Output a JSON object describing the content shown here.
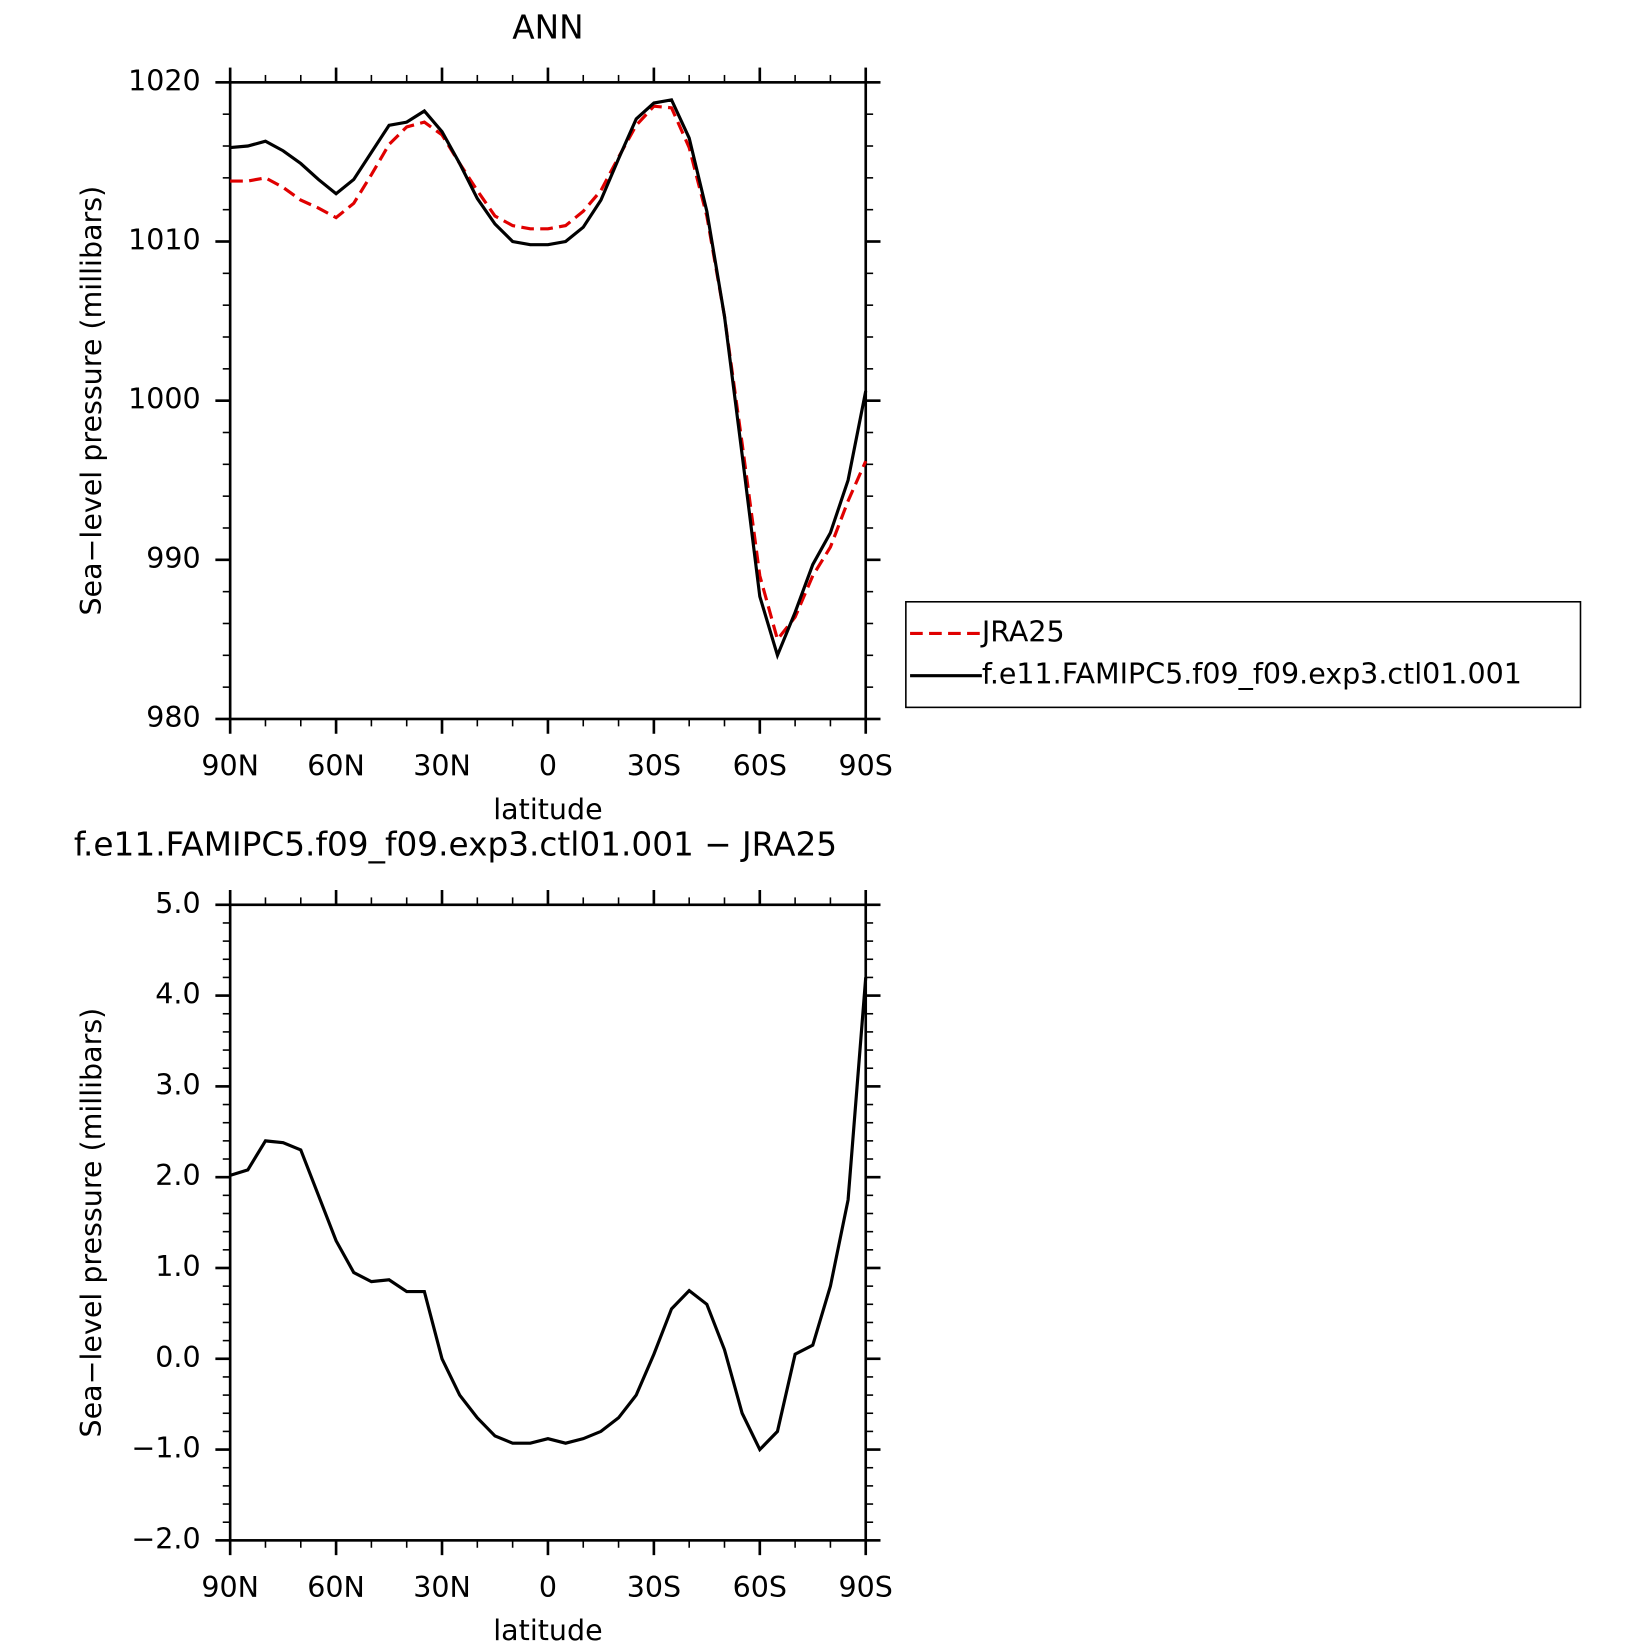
{
  "chart_data": [
    {
      "type": "line",
      "title": "ANN",
      "x_label": "latitude",
      "y_label": "Sea−level pressure (millibars)",
      "x": [
        90,
        85,
        80,
        75,
        70,
        65,
        60,
        55,
        50,
        45,
        40,
        35,
        30,
        25,
        20,
        15,
        10,
        5,
        0,
        -5,
        -10,
        -15,
        -20,
        -25,
        -30,
        -35,
        -40,
        -45,
        -50,
        -55,
        -60,
        -65,
        -70,
        -75,
        -80,
        -85,
        -90
      ],
      "series": [
        {
          "name": "JRA25",
          "color": "#e00000",
          "style": "dashed",
          "values": [
            1013.8,
            1013.8,
            1014.0,
            1013.4,
            1012.6,
            1012.1,
            1011.5,
            1012.4,
            1014.2,
            1016.1,
            1017.2,
            1017.5,
            1016.7,
            1014.9,
            1013.2,
            1011.6,
            1011.0,
            1010.8,
            1010.8,
            1011.0,
            1011.9,
            1013.2,
            1015.3,
            1017.3,
            1018.5,
            1018.4,
            1015.9,
            1011.6,
            1005.3,
            997.3,
            989.0,
            985.0,
            986.4,
            989.0,
            990.8,
            993.7,
            996.2
          ]
        },
        {
          "name": "f.e11.FAMIPC5.f09_f09.exp3.ctl01.001",
          "color": "#000000",
          "style": "solid",
          "values": [
            1015.9,
            1016.0,
            1016.3,
            1015.7,
            1014.9,
            1013.9,
            1013.0,
            1013.9,
            1015.6,
            1017.3,
            1017.5,
            1018.2,
            1016.9,
            1014.9,
            1012.7,
            1011.1,
            1010.0,
            1009.8,
            1009.8,
            1010.0,
            1010.9,
            1012.6,
            1015.2,
            1017.7,
            1018.7,
            1018.9,
            1016.5,
            1011.9,
            1005.3,
            996.6,
            987.7,
            984.0,
            986.7,
            989.7,
            991.7,
            995.0,
            1000.6
          ]
        }
      ],
      "xlim": [
        90,
        -90
      ],
      "ylim": [
        980,
        1020
      ],
      "xticks": [
        {
          "value": 90,
          "label": "90N"
        },
        {
          "value": 60,
          "label": "60N"
        },
        {
          "value": 30,
          "label": "30N"
        },
        0,
        {
          "value": -30,
          "label": "30S"
        },
        {
          "value": -60,
          "label": "60S"
        },
        {
          "value": -90,
          "label": "90S"
        }
      ],
      "yticks": [
        980,
        990,
        1000,
        1010,
        1020
      ],
      "minor_xticks": [
        80,
        70,
        50,
        40,
        20,
        10,
        -10,
        -20,
        -40,
        -50,
        -70,
        -80
      ],
      "minor_yticks": [
        982,
        984,
        986,
        988,
        992,
        994,
        996,
        998,
        1002,
        1004,
        1006,
        1008,
        1012,
        1014,
        1016,
        1018
      ],
      "legend": "right"
    },
    {
      "type": "line",
      "title": "f.e11.FAMIPC5.f09_f09.exp3.ctl01.001 − JRA25",
      "x_label": "latitude",
      "y_label": "Sea−level pressure (millibars)",
      "x": [
        90,
        85,
        80,
        75,
        70,
        65,
        60,
        55,
        50,
        45,
        40,
        35,
        30,
        25,
        20,
        15,
        10,
        5,
        0,
        -5,
        -10,
        -15,
        -20,
        -25,
        -30,
        -35,
        -40,
        -45,
        -50,
        -55,
        -60,
        -65,
        -70,
        -75,
        -80,
        -85,
        -90
      ],
      "values": [
        2.02,
        2.08,
        2.4,
        2.38,
        2.3,
        1.8,
        1.3,
        0.95,
        0.85,
        0.87,
        0.74,
        0.74,
        0.0,
        -0.4,
        -0.65,
        -0.85,
        -0.93,
        -0.93,
        -0.88,
        -0.93,
        -0.88,
        -0.8,
        -0.65,
        -0.4,
        0.05,
        0.55,
        0.75,
        0.6,
        0.1,
        -0.6,
        -1.0,
        -0.8,
        0.05,
        0.15,
        0.8,
        1.75,
        4.2
      ],
      "color": "#000000",
      "xlim": [
        90,
        -90
      ],
      "ylim": [
        -2,
        5
      ],
      "xticks": [
        {
          "value": 90,
          "label": "90N"
        },
        {
          "value": 60,
          "label": "60N"
        },
        {
          "value": 30,
          "label": "30N"
        },
        0,
        {
          "value": -30,
          "label": "30S"
        },
        {
          "value": -60,
          "label": "60S"
        },
        {
          "value": -90,
          "label": "90S"
        }
      ],
      "yticks": [
        {
          "value": -2,
          "label": "−2.0"
        },
        {
          "value": -1,
          "label": "−1.0"
        },
        {
          "value": 0,
          "label": "0.0"
        },
        {
          "value": 1,
          "label": "1.0"
        },
        {
          "value": 2,
          "label": "2.0"
        },
        {
          "value": 3,
          "label": "3.0"
        },
        {
          "value": 4,
          "label": "4.0"
        },
        {
          "value": 5,
          "label": "5.0"
        }
      ],
      "minor_xticks": [
        80,
        70,
        50,
        40,
        20,
        10,
        -10,
        -20,
        -40,
        -50,
        -70,
        -80
      ],
      "minor_yticks": [
        -1.8,
        -1.6,
        -1.4,
        -1.2,
        -0.8,
        -0.6,
        -0.4,
        -0.2,
        0.2,
        0.4,
        0.6,
        0.8,
        1.2,
        1.4,
        1.6,
        1.8,
        2.2,
        2.4,
        2.6,
        2.8,
        3.2,
        3.4,
        3.6,
        3.8,
        4.2,
        4.4,
        4.6,
        4.8
      ]
    }
  ]
}
